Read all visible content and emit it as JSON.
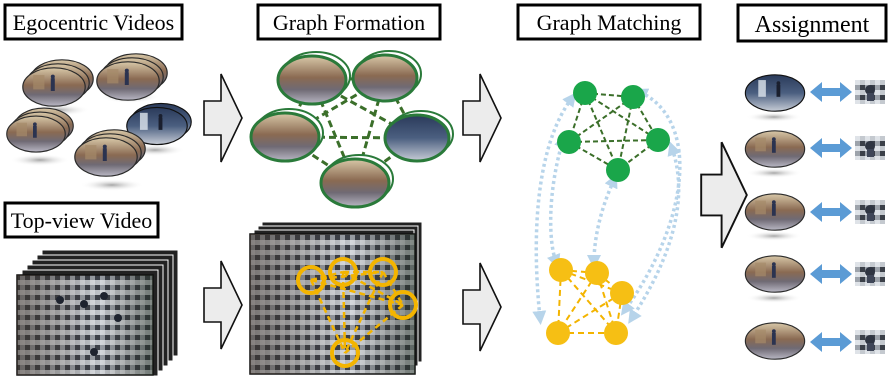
{
  "labels": {
    "egocentric_videos": "Egocentric Videos",
    "graph_formation": "Graph Formation",
    "graph_matching": "Graph Matching",
    "assignment": "Assignment",
    "top_view_video": "Top-view Video"
  },
  "colors": {
    "ego_node": "#1aa64a",
    "ego_edge": "#3b6f2a",
    "top_node": "#f6bf14",
    "top_ring": "#f3b400",
    "match_link": "#b7d4ea",
    "assign_arrow": "#5b9bd5",
    "process_arrow_fill": "#ececec",
    "process_arrow_stroke": "#111111"
  },
  "icons": {
    "process_arrow": "chevron-right-arrow",
    "assign_arrow": "double-headed-arrow"
  }
}
